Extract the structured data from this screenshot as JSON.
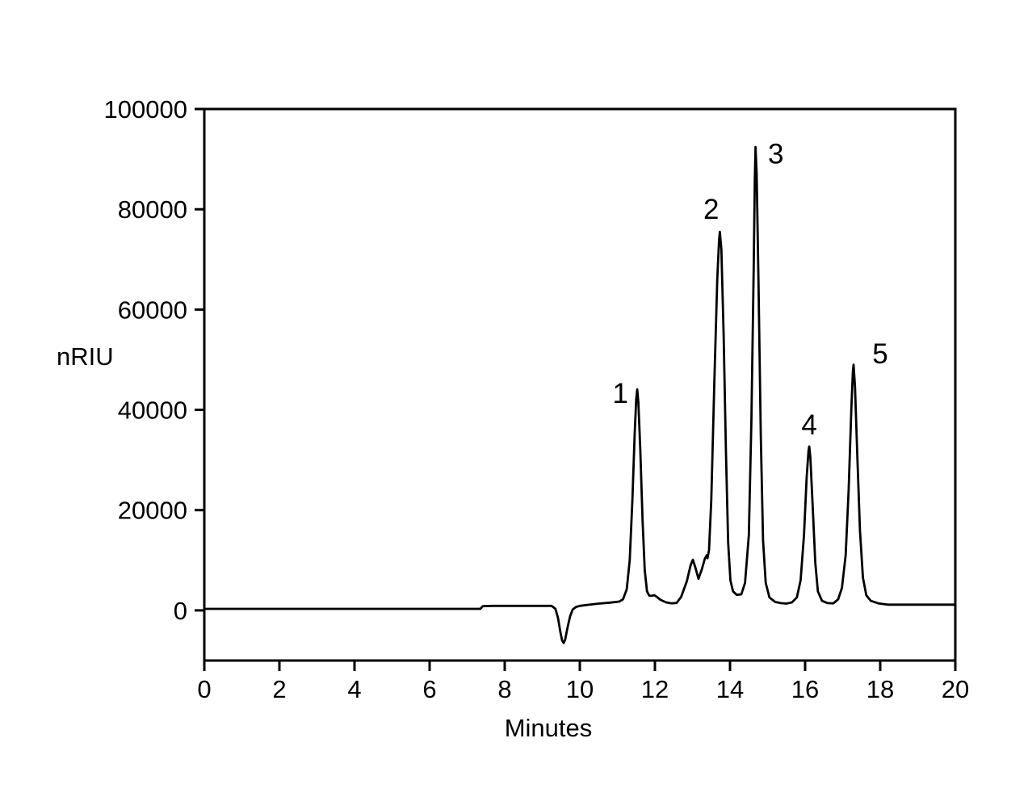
{
  "figure": {
    "background": "#ffffff",
    "line_color": "#000000",
    "text_color": "#000000"
  },
  "chart_data": {
    "type": "line",
    "title": "",
    "xlabel": "Minutes",
    "ylabel": "nRIU",
    "xlim": [
      0,
      20
    ],
    "ylim": [
      -10000,
      100000
    ],
    "x_ticks": [
      0,
      2,
      4,
      6,
      8,
      10,
      12,
      14,
      16,
      18,
      20
    ],
    "y_ticks": [
      0,
      20000,
      40000,
      60000,
      80000,
      100000
    ],
    "grid": false,
    "legend": false,
    "peaks": [
      {
        "label": "1",
        "rt_min": 11.53,
        "height_nriu": 44100,
        "label_pos": [
          11.08,
          43300
        ]
      },
      {
        "label": "2",
        "rt_min": 13.73,
        "height_nriu": 75500,
        "label_pos": [
          13.5,
          80000
        ]
      },
      {
        "label": "3",
        "rt_min": 14.68,
        "height_nriu": 92400,
        "label_pos": [
          15.22,
          91100
        ]
      },
      {
        "label": "4",
        "rt_min": 16.11,
        "height_nriu": 32700,
        "label_pos": [
          16.11,
          37000
        ]
      },
      {
        "label": "5",
        "rt_min": 17.29,
        "height_nriu": 49000,
        "label_pos": [
          18.0,
          51200
        ]
      }
    ],
    "baseline_dip": {
      "rt_min": 9.57,
      "depth_nriu": -6500
    },
    "series": [
      {
        "points": [
          [
            0,
            300
          ],
          [
            7.35,
            300
          ],
          [
            7.42,
            850
          ],
          [
            7.7,
            900
          ],
          [
            9.25,
            900
          ],
          [
            9.35,
            300
          ],
          [
            9.42,
            -1500
          ],
          [
            9.48,
            -4200
          ],
          [
            9.53,
            -6000
          ],
          [
            9.57,
            -6500
          ],
          [
            9.61,
            -5800
          ],
          [
            9.67,
            -3500
          ],
          [
            9.74,
            -1200
          ],
          [
            9.81,
            200
          ],
          [
            9.9,
            700
          ],
          [
            10.0,
            900
          ],
          [
            10.2,
            1100
          ],
          [
            10.5,
            1350
          ],
          [
            10.8,
            1550
          ],
          [
            11.05,
            1750
          ],
          [
            11.15,
            2200
          ],
          [
            11.25,
            4200
          ],
          [
            11.33,
            10000
          ],
          [
            11.4,
            22000
          ],
          [
            11.46,
            35000
          ],
          [
            11.5,
            42000
          ],
          [
            11.53,
            44100
          ],
          [
            11.56,
            41500
          ],
          [
            11.61,
            32000
          ],
          [
            11.67,
            18000
          ],
          [
            11.73,
            8000
          ],
          [
            11.79,
            3800
          ],
          [
            11.85,
            2950
          ],
          [
            11.92,
            2900
          ],
          [
            11.98,
            3050
          ],
          [
            12.05,
            2700
          ],
          [
            12.15,
            2100
          ],
          [
            12.3,
            1600
          ],
          [
            12.45,
            1400
          ],
          [
            12.58,
            1500
          ],
          [
            12.7,
            2700
          ],
          [
            12.85,
            5800
          ],
          [
            12.95,
            9000
          ],
          [
            13.01,
            10100
          ],
          [
            13.08,
            8500
          ],
          [
            13.16,
            6300
          ],
          [
            13.25,
            8200
          ],
          [
            13.33,
            10300
          ],
          [
            13.38,
            11000
          ],
          [
            13.4,
            10400
          ],
          [
            13.44,
            12000
          ],
          [
            13.5,
            22000
          ],
          [
            13.58,
            45000
          ],
          [
            13.66,
            66000
          ],
          [
            13.71,
            74000
          ],
          [
            13.73,
            75500
          ],
          [
            13.77,
            72000
          ],
          [
            13.83,
            55000
          ],
          [
            13.89,
            32000
          ],
          [
            13.95,
            13500
          ],
          [
            14.01,
            6000
          ],
          [
            14.08,
            3800
          ],
          [
            14.18,
            3100
          ],
          [
            14.3,
            3200
          ],
          [
            14.4,
            5500
          ],
          [
            14.5,
            15000
          ],
          [
            14.57,
            38000
          ],
          [
            14.63,
            68000
          ],
          [
            14.66,
            86000
          ],
          [
            14.68,
            92400
          ],
          [
            14.71,
            87000
          ],
          [
            14.76,
            65000
          ],
          [
            14.82,
            35000
          ],
          [
            14.88,
            14000
          ],
          [
            14.95,
            5500
          ],
          [
            15.05,
            2600
          ],
          [
            15.2,
            1700
          ],
          [
            15.35,
            1450
          ],
          [
            15.5,
            1350
          ],
          [
            15.65,
            1600
          ],
          [
            15.78,
            2600
          ],
          [
            15.88,
            6000
          ],
          [
            15.97,
            15000
          ],
          [
            16.04,
            26500
          ],
          [
            16.09,
            31800
          ],
          [
            16.11,
            32700
          ],
          [
            16.14,
            30500
          ],
          [
            16.2,
            21000
          ],
          [
            16.27,
            9500
          ],
          [
            16.34,
            3800
          ],
          [
            16.45,
            1900
          ],
          [
            16.6,
            1450
          ],
          [
            16.75,
            1400
          ],
          [
            16.88,
            2200
          ],
          [
            16.98,
            4500
          ],
          [
            17.08,
            11000
          ],
          [
            17.16,
            24000
          ],
          [
            17.23,
            40000
          ],
          [
            17.27,
            47500
          ],
          [
            17.29,
            49000
          ],
          [
            17.33,
            44500
          ],
          [
            17.39,
            31000
          ],
          [
            17.46,
            16000
          ],
          [
            17.54,
            6500
          ],
          [
            17.63,
            3000
          ],
          [
            17.75,
            1900
          ],
          [
            17.95,
            1400
          ],
          [
            18.2,
            1150
          ],
          [
            20,
            1150
          ]
        ]
      }
    ]
  }
}
